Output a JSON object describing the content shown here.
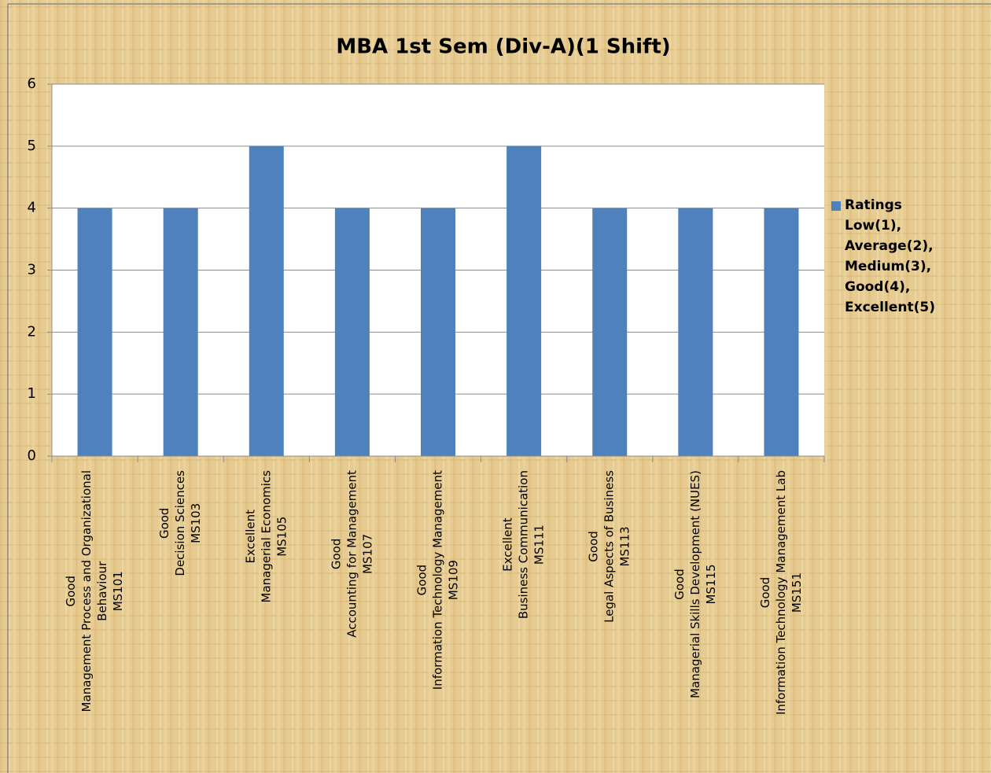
{
  "chart_data": {
    "type": "bar",
    "title": "MBA 1st Sem (Div-A)(1 Shift)",
    "categories": [
      [
        "Good",
        "Management Process and Organizational",
        "Behaviour",
        "MS101"
      ],
      [
        "Good",
        "Decision Sciences",
        "MS103"
      ],
      [
        "Excellent",
        "Managerial Economics",
        "MS105"
      ],
      [
        "Good",
        "Accounting for Management",
        "MS107"
      ],
      [
        "Good",
        "Information Technology Management",
        "MS109"
      ],
      [
        "Excellent",
        "Business Communication",
        "MS111"
      ],
      [
        "Good",
        "Legal Aspects of Business",
        "MS113"
      ],
      [
        "Good",
        "Managerial Skills Development (NUES)",
        "MS115"
      ],
      [
        "Good",
        "Information Technology Management Lab",
        "MS151"
      ]
    ],
    "series": [
      {
        "name": "Ratings Low(1), Average(2), Medium(3), Good(4), Excellent(5)",
        "color": "#4f81bd",
        "values": [
          4,
          4,
          5,
          4,
          4,
          5,
          4,
          4,
          4
        ]
      }
    ],
    "ylim": [
      0,
      6
    ],
    "yticks": [
      0,
      1,
      2,
      3,
      4,
      5,
      6
    ],
    "grid": true,
    "legend": "right"
  }
}
